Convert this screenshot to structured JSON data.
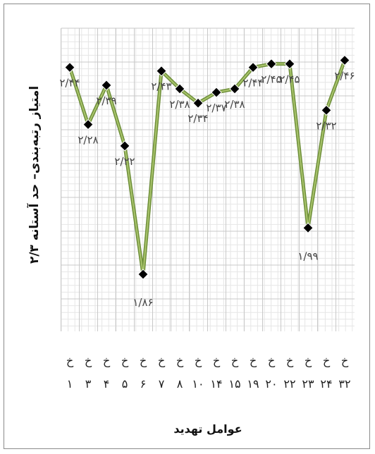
{
  "chart_data": {
    "type": "line",
    "title": "",
    "xlabel": "عوامل تهدید",
    "ylabel": "امتیاز رتبه‌بندی– حد آستانه ۲/۳",
    "categories": [
      {
        "letter": "خ",
        "num": "۱"
      },
      {
        "letter": "خ",
        "num": "۳"
      },
      {
        "letter": "خ",
        "num": "۴"
      },
      {
        "letter": "خ",
        "num": "۵"
      },
      {
        "letter": "خ",
        "num": "۶"
      },
      {
        "letter": "خ",
        "num": "۷"
      },
      {
        "letter": "خ",
        "num": "۸"
      },
      {
        "letter": "خ",
        "num": "۱۰"
      },
      {
        "letter": "خ",
        "num": "۱۴"
      },
      {
        "letter": "خ",
        "num": "۱۵"
      },
      {
        "letter": "خ",
        "num": "۱۹"
      },
      {
        "letter": "خ",
        "num": "۲۰"
      },
      {
        "letter": "خ",
        "num": "۲۲"
      },
      {
        "letter": "خ",
        "num": "۲۳"
      },
      {
        "letter": "خ",
        "num": "۲۴"
      },
      {
        "letter": "خ",
        "num": "۳۲"
      }
    ],
    "values": [
      2.44,
      2.28,
      2.39,
      2.22,
      1.86,
      2.43,
      2.38,
      2.34,
      2.37,
      2.38,
      2.44,
      2.45,
      2.45,
      1.99,
      2.32,
      2.46
    ],
    "data_labels": [
      "۲/۴۴",
      "۲/۲۸",
      "۲/۳۹",
      "۲/۲۲",
      "۱/۸۶",
      "۲/۴۳",
      "۲/۳۸",
      "۲/۳۴",
      "۲/۳۷",
      "۲/۳۸",
      "۲/۴۴",
      "۲/۴۵",
      "۲/۴۵",
      "۱/۹۹",
      "۲/۳۲",
      "۲/۴۶"
    ],
    "ylim": [
      1.7,
      2.55
    ],
    "grid": true,
    "legend": "none",
    "line_color": "#6e8f3a",
    "line_highlight": "#a9c46c",
    "marker_color": "#000000",
    "grid_major_color": "#c8c8c8",
    "grid_minor_color": "#e6e6e6"
  }
}
